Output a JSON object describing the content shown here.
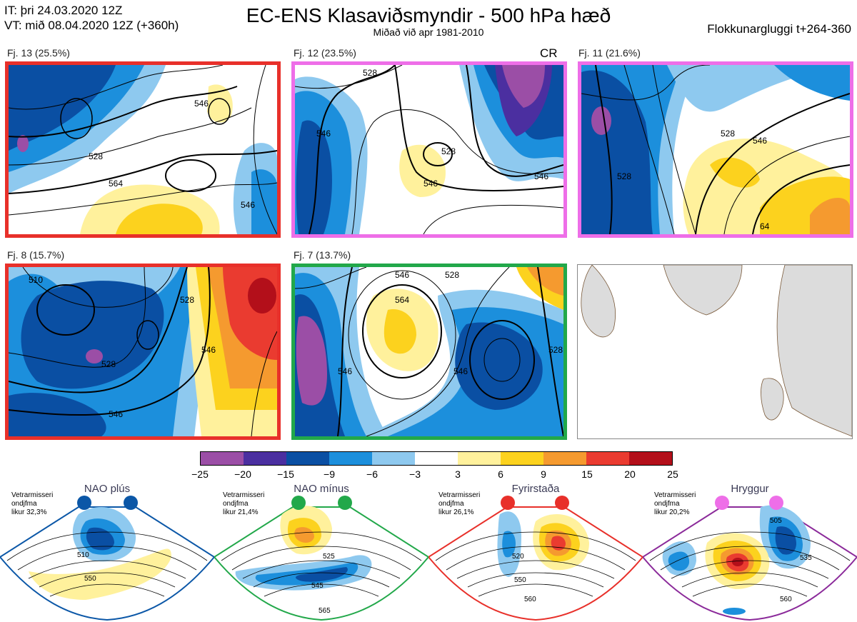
{
  "header": {
    "it_line": "IT: þri 24.03.2020 12Z",
    "vt_line": "VT: mið 08.04.2020 12Z  (+360h)",
    "title": "EC-ENS Klasaviðsmyndir - 500 hPa hæð",
    "subtitle": "Miðað við apr 1981-2010",
    "window": "Flokkunargluggi t+264-360"
  },
  "panels": [
    {
      "label": "Fj. 13 (25.5%)",
      "border": "#e8302a",
      "contours": [
        "546",
        "528",
        "564",
        "546"
      ]
    },
    {
      "label": "Fj. 12 (23.5%)",
      "border": "#ee6ee8",
      "cr": "CR",
      "contours": [
        "546",
        "528",
        "546",
        "528",
        "546"
      ]
    },
    {
      "label": "Fj. 11 (21.6%)",
      "border": "#ee6ee8",
      "contours": [
        "528",
        "546",
        "528",
        "64"
      ]
    },
    {
      "label": "Fj. 8 (15.7%)",
      "border": "#e8302a",
      "contours": [
        "510",
        "528",
        "546",
        "546",
        "528"
      ]
    },
    {
      "label": "Fj. 7 (13.7%)",
      "border": "#22a84a",
      "contours": [
        "546",
        "564",
        "546",
        "546",
        "528",
        "528"
      ]
    }
  ],
  "colorbar": {
    "colors": [
      "#9b4ea6",
      "#4b2fa0",
      "#0a4fa3",
      "#1c8fdc",
      "#8ec9ef",
      "#ffffff",
      "#fff19c",
      "#fcd21e",
      "#f59a2f",
      "#ea3b30",
      "#b30f1a"
    ],
    "ticks": [
      "−25",
      "−20",
      "−15",
      "−9",
      "−6",
      "−3",
      "3",
      "6",
      "9",
      "15",
      "20",
      "25"
    ]
  },
  "regimes": [
    {
      "name": "NAO plús",
      "meta": [
        "Vetrarmisseri",
        "ondjfma",
        "likur 32,3%"
      ],
      "color": "#0b57a7",
      "labels": [
        "510",
        "550"
      ]
    },
    {
      "name": "NAO mínus",
      "meta": [
        "Vetrarmisseri",
        "ondjfma",
        "likur 21,4%"
      ],
      "color": "#22a84a",
      "labels": [
        "525",
        "545",
        "565"
      ]
    },
    {
      "name": "Fyrirstaða",
      "meta": [
        "Vetrarmisseri",
        "ondjfma",
        "likur 26,1%"
      ],
      "color": "#e8302a",
      "labels": [
        "520",
        "550",
        "560"
      ]
    },
    {
      "name": "Hryggur",
      "meta": [
        "Vetrarmisseri",
        "ondjfma",
        "likur 20,2%"
      ],
      "color": "#ee6ee8",
      "labels": [
        "505",
        "535",
        "560"
      ]
    }
  ]
}
